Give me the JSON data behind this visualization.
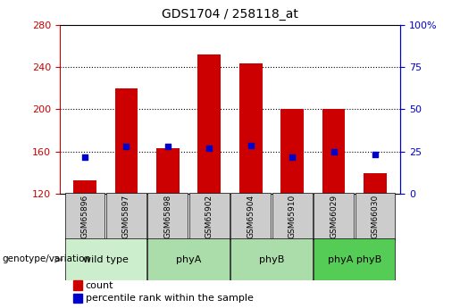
{
  "title": "GDS1704 / 258118_at",
  "samples": [
    "GSM65896",
    "GSM65897",
    "GSM65898",
    "GSM65902",
    "GSM65904",
    "GSM65910",
    "GSM66029",
    "GSM66030"
  ],
  "counts": [
    133,
    220,
    163,
    252,
    243,
    200,
    200,
    140
  ],
  "percentile_values": [
    155,
    165,
    165,
    163,
    166,
    155,
    160,
    157
  ],
  "bar_bottom": 120,
  "ylim_left": [
    120,
    280
  ],
  "ylim_right": [
    0,
    100
  ],
  "yticks_left": [
    120,
    160,
    200,
    240,
    280
  ],
  "yticks_right": [
    0,
    25,
    50,
    75,
    100
  ],
  "ytick_labels_right": [
    "0",
    "25",
    "50",
    "75",
    "100%"
  ],
  "bar_color": "#cc0000",
  "dot_color": "#0000cc",
  "bar_width": 0.55,
  "group_data": [
    {
      "label": "wild type",
      "indices": [
        0,
        1
      ],
      "color": "#cceecc"
    },
    {
      "label": "phyA",
      "indices": [
        2,
        3
      ],
      "color": "#aaddaa"
    },
    {
      "label": "phyB",
      "indices": [
        4,
        5
      ],
      "color": "#aaddaa"
    },
    {
      "label": "phyA phyB",
      "indices": [
        6,
        7
      ],
      "color": "#55cc55"
    }
  ],
  "left_tick_color": "#cc0000",
  "right_tick_color": "#0000cc",
  "sample_box_color": "#cccccc",
  "grid_yticks": [
    160,
    200,
    240
  ],
  "genotype_label": "genotype/variation",
  "legend_items": [
    {
      "color": "#cc0000",
      "label": "count"
    },
    {
      "color": "#0000cc",
      "label": "percentile rank within the sample"
    }
  ]
}
